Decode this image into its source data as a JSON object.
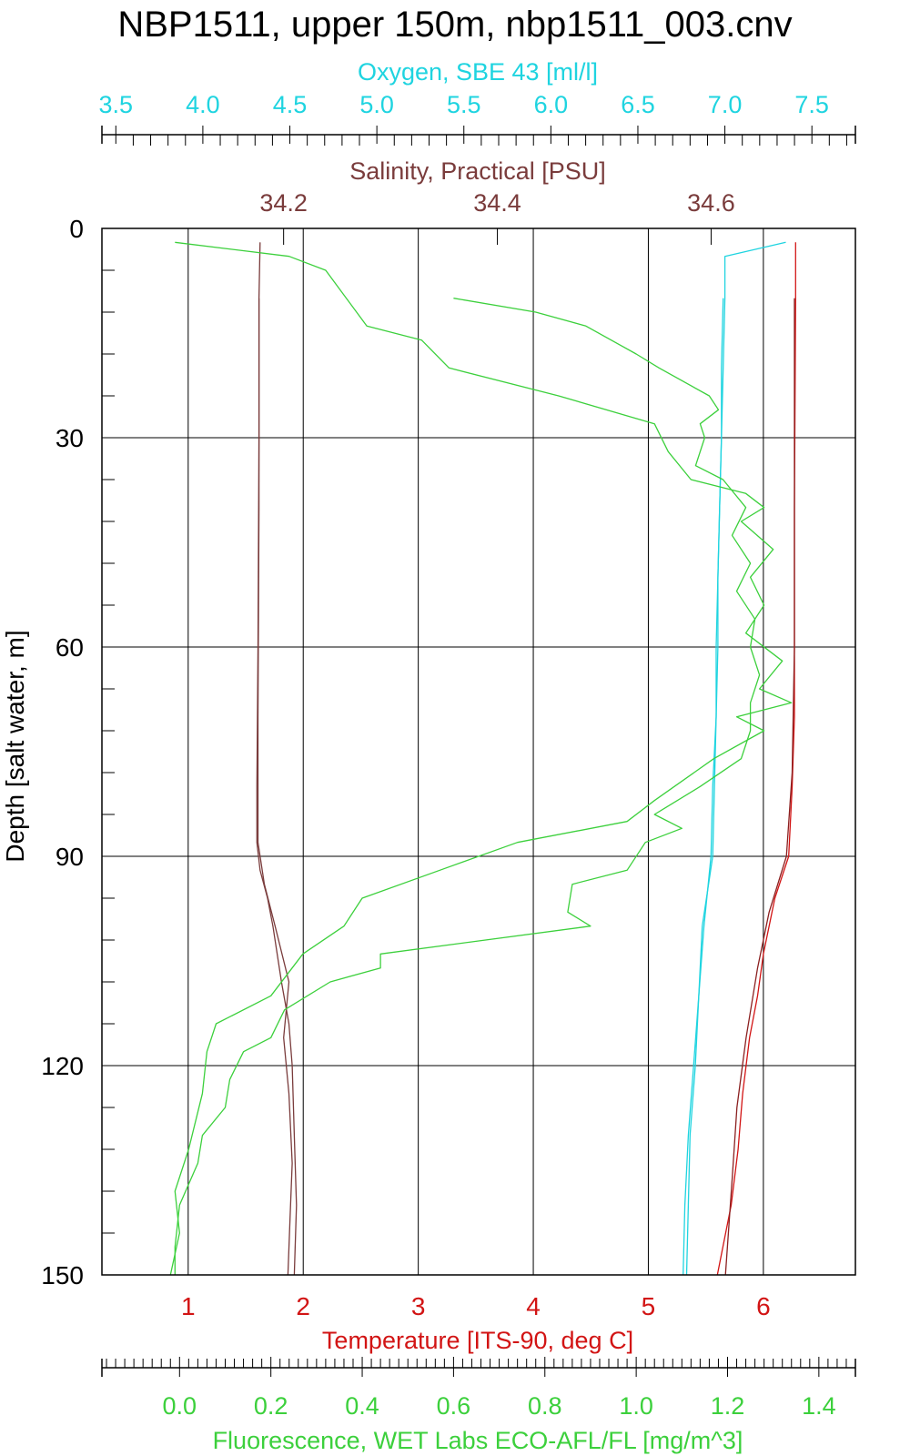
{
  "chart_data": {
    "type": "line",
    "title": "NBP1511, upper 150m, nbp1511_003.cnv",
    "y_axis": {
      "label": "Depth [salt water, m]",
      "range": [
        0,
        150
      ],
      "inverted": true,
      "major_ticks": [
        0,
        30,
        60,
        90,
        120,
        150
      ],
      "minor_step": 6
    },
    "grid": true,
    "axes": {
      "oxygen": {
        "label": "Oxygen, SBE 43 [ml/l]",
        "position": "top",
        "range": [
          3.42,
          7.75
        ],
        "ticks": [
          "3.5",
          "4.0",
          "4.5",
          "5.0",
          "5.5",
          "6.0",
          "6.5",
          "7.0",
          "7.5"
        ],
        "color": "#1fd4e0"
      },
      "salinity": {
        "label": "Salinity, Practical [PSU]",
        "position": "top",
        "range": [
          34.03,
          34.735
        ],
        "ticks": [
          "34.2",
          "34.4",
          "34.6"
        ],
        "color": "#7a3c3c"
      },
      "temperature": {
        "label": "Temperature [ITS-90, deg C]",
        "position": "bottom",
        "range": [
          0.25,
          6.8
        ],
        "ticks": [
          "1",
          "2",
          "3",
          "4",
          "5",
          "6"
        ],
        "color": "#d21414"
      },
      "fluorescence": {
        "label": "Fluorescence, WET Labs ECO-AFL/FL [mg/m^3]",
        "position": "bottom",
        "range": [
          -0.17,
          1.48
        ],
        "ticks": [
          "0.0",
          "0.2",
          "0.4",
          "0.6",
          "0.8",
          "1.0",
          "1.2",
          "1.4"
        ],
        "color": "#3cd03c"
      }
    },
    "series": [
      {
        "axis": "oxygen",
        "color": "#1fd4e0",
        "points": [
          [
            7.35,
            2
          ],
          [
            7.0,
            4
          ],
          [
            7.0,
            10
          ],
          [
            6.99,
            20
          ],
          [
            6.98,
            30
          ],
          [
            6.97,
            40
          ],
          [
            6.96,
            50
          ],
          [
            6.95,
            60
          ],
          [
            6.95,
            70
          ],
          [
            6.93,
            80
          ],
          [
            6.92,
            90
          ],
          [
            6.9,
            95
          ],
          [
            6.87,
            100
          ],
          [
            6.85,
            110
          ],
          [
            6.82,
            120
          ],
          [
            6.79,
            130
          ],
          [
            6.77,
            140
          ],
          [
            6.76,
            150
          ]
        ]
      },
      {
        "axis": "oxygen",
        "color": "#1fd4e0",
        "points": [
          [
            6.99,
            10
          ],
          [
            6.98,
            20
          ],
          [
            6.98,
            30
          ],
          [
            6.97,
            40
          ],
          [
            6.96,
            50
          ],
          [
            6.96,
            60
          ],
          [
            6.95,
            70
          ],
          [
            6.94,
            80
          ],
          [
            6.93,
            90
          ],
          [
            6.9,
            95
          ],
          [
            6.88,
            100
          ],
          [
            6.85,
            110
          ],
          [
            6.83,
            120
          ],
          [
            6.8,
            130
          ],
          [
            6.79,
            140
          ],
          [
            6.78,
            150
          ]
        ]
      },
      {
        "axis": "salinity",
        "color": "#7a3c3c",
        "points": [
          [
            34.178,
            2
          ],
          [
            34.177,
            10
          ],
          [
            34.177,
            30
          ],
          [
            34.176,
            60
          ],
          [
            34.175,
            80
          ],
          [
            34.175,
            88
          ],
          [
            34.178,
            92
          ],
          [
            34.185,
            96
          ],
          [
            34.19,
            100
          ],
          [
            34.198,
            108
          ],
          [
            34.205,
            114
          ],
          [
            34.208,
            120
          ],
          [
            34.21,
            130
          ],
          [
            34.212,
            140
          ],
          [
            34.21,
            150
          ]
        ]
      },
      {
        "axis": "salinity",
        "color": "#7a3c3c",
        "points": [
          [
            34.177,
            10
          ],
          [
            34.177,
            40
          ],
          [
            34.176,
            70
          ],
          [
            34.176,
            88
          ],
          [
            34.182,
            94
          ],
          [
            34.192,
            100
          ],
          [
            34.205,
            108
          ],
          [
            34.2,
            116
          ],
          [
            34.205,
            124
          ],
          [
            34.208,
            134
          ],
          [
            34.206,
            142
          ],
          [
            34.204,
            150
          ]
        ]
      },
      {
        "axis": "temperature",
        "color": "#d21414",
        "points": [
          [
            6.28,
            2
          ],
          [
            6.28,
            10
          ],
          [
            6.27,
            40
          ],
          [
            6.27,
            70
          ],
          [
            6.25,
            80
          ],
          [
            6.22,
            90
          ],
          [
            6.1,
            96
          ],
          [
            6.0,
            104
          ],
          [
            5.95,
            110
          ],
          [
            5.88,
            116
          ],
          [
            5.82,
            124
          ],
          [
            5.78,
            132
          ],
          [
            5.72,
            140
          ],
          [
            5.6,
            150
          ]
        ]
      },
      {
        "axis": "temperature",
        "color": "#8b2020",
        "points": [
          [
            6.27,
            10
          ],
          [
            6.27,
            60
          ],
          [
            6.25,
            78
          ],
          [
            6.2,
            90
          ],
          [
            6.05,
            98
          ],
          [
            5.95,
            106
          ],
          [
            5.85,
            116
          ],
          [
            5.77,
            126
          ],
          [
            5.73,
            136
          ],
          [
            5.67,
            150
          ]
        ]
      },
      {
        "axis": "fluorescence",
        "color": "#3cd03c",
        "points": [
          [
            -0.01,
            2
          ],
          [
            0.24,
            4
          ],
          [
            0.32,
            6
          ],
          [
            0.41,
            14
          ],
          [
            0.53,
            16
          ],
          [
            0.59,
            20
          ],
          [
            0.83,
            24
          ],
          [
            1.04,
            28
          ],
          [
            1.07,
            32
          ],
          [
            1.12,
            36
          ],
          [
            1.24,
            38
          ],
          [
            1.28,
            40
          ],
          [
            1.23,
            42
          ],
          [
            1.3,
            46
          ],
          [
            1.25,
            50
          ],
          [
            1.28,
            54
          ],
          [
            1.24,
            58
          ],
          [
            1.32,
            62
          ],
          [
            1.27,
            66
          ],
          [
            1.34,
            68
          ],
          [
            1.22,
            70
          ],
          [
            1.28,
            72
          ],
          [
            1.17,
            76
          ],
          [
            1.04,
            82
          ],
          [
            0.98,
            85
          ],
          [
            0.74,
            88
          ],
          [
            0.57,
            92
          ],
          [
            0.4,
            96
          ],
          [
            0.36,
            100
          ],
          [
            0.27,
            104
          ],
          [
            0.2,
            110
          ],
          [
            0.08,
            114
          ],
          [
            0.06,
            118
          ],
          [
            0.05,
            124
          ],
          [
            0.02,
            132
          ],
          [
            -0.01,
            138
          ],
          [
            0.0,
            144
          ],
          [
            -0.02,
            150
          ]
        ]
      },
      {
        "axis": "fluorescence",
        "color": "#3cd03c",
        "points": [
          [
            0.6,
            10
          ],
          [
            0.78,
            12
          ],
          [
            0.89,
            14
          ],
          [
            1.0,
            18
          ],
          [
            1.05,
            20
          ],
          [
            1.16,
            24
          ],
          [
            1.18,
            26
          ],
          [
            1.14,
            28
          ],
          [
            1.15,
            30
          ],
          [
            1.13,
            34
          ],
          [
            1.19,
            36
          ],
          [
            1.24,
            40
          ],
          [
            1.21,
            44
          ],
          [
            1.25,
            48
          ],
          [
            1.22,
            52
          ],
          [
            1.26,
            56
          ],
          [
            1.25,
            60
          ],
          [
            1.27,
            64
          ],
          [
            1.25,
            68
          ],
          [
            1.25,
            72
          ],
          [
            1.23,
            76
          ],
          [
            1.14,
            80
          ],
          [
            1.04,
            84
          ],
          [
            1.1,
            86
          ],
          [
            1.02,
            88
          ],
          [
            0.98,
            92
          ],
          [
            0.86,
            94
          ],
          [
            0.85,
            98
          ],
          [
            0.9,
            100
          ],
          [
            0.44,
            104
          ],
          [
            0.44,
            106
          ],
          [
            0.33,
            108
          ],
          [
            0.23,
            112
          ],
          [
            0.2,
            116
          ],
          [
            0.14,
            118
          ],
          [
            0.11,
            122
          ],
          [
            0.1,
            126
          ],
          [
            0.05,
            130
          ],
          [
            0.04,
            134
          ],
          [
            0.0,
            140
          ],
          [
            -0.01,
            146
          ],
          [
            -0.01,
            150
          ]
        ]
      }
    ]
  }
}
